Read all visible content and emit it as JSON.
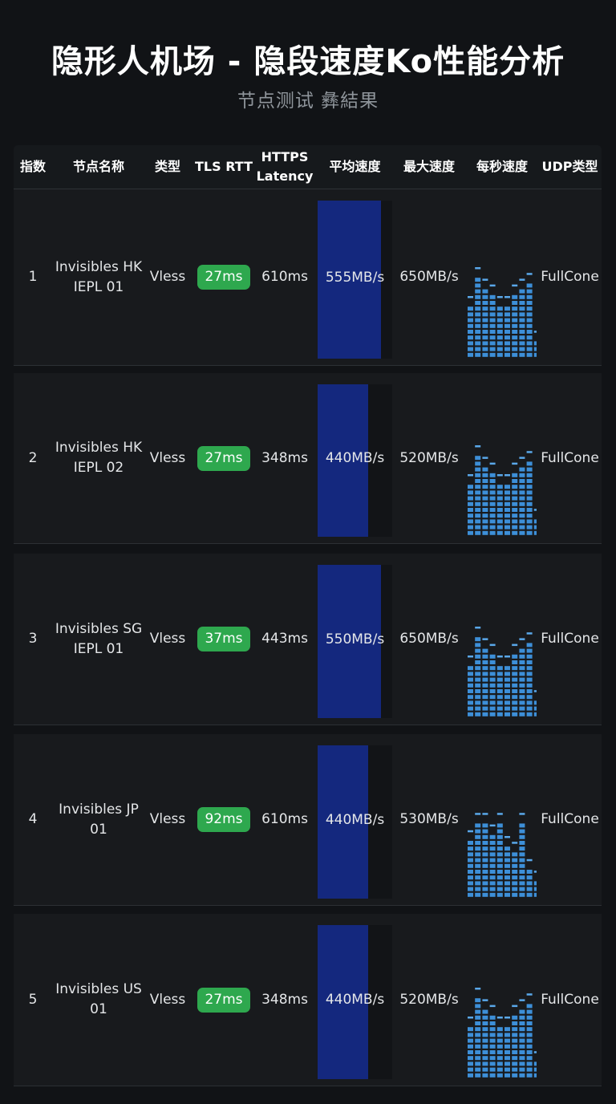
{
  "title": "隐形人机场 - 隐段速度Ko性能分析",
  "subtitle": "节点测试 彝結果",
  "columns": [
    "指数",
    "节点名称",
    "类型",
    "TLS RTT",
    "HTTPS Latency",
    "平均速度",
    "最大速度",
    "每秒速度",
    "UDP类型"
  ],
  "colors": {
    "accent_green": "#2ea84e",
    "bar_fill": "#14287e",
    "spark": "#3d8fd8"
  },
  "chart_data": {
    "type": "table",
    "max_speed_scale_mb": 650,
    "rows": [
      {
        "index": "1",
        "name": "Invisibles HK\nIEPL 01",
        "type": "Vless",
        "tls_rtt": "27ms",
        "https_latency": "610ms",
        "avg_speed": "555MB/s",
        "avg_speed_value": 555,
        "max_speed": "650MB/s",
        "per_second": [
          9,
          14,
          12,
          11,
          9,
          9,
          11,
          12,
          13,
          3
        ],
        "udp": "FullCone"
      },
      {
        "index": "2",
        "name": "Invisibles HK\nIEPL 02",
        "type": "Vless",
        "tls_rtt": "27ms",
        "https_latency": "348ms",
        "avg_speed": "440MB/s",
        "avg_speed_value": 440,
        "max_speed": "520MB/s",
        "per_second": [
          9,
          14,
          12,
          11,
          9,
          9,
          11,
          12,
          13,
          3
        ],
        "udp": "FullCone"
      },
      {
        "index": "3",
        "name": "Invisibles SG\nIEPL 01",
        "type": "Vless",
        "tls_rtt": "37ms",
        "https_latency": "443ms",
        "avg_speed": "550MB/s",
        "avg_speed_value": 550,
        "max_speed": "650MB/s",
        "per_second": [
          9,
          14,
          12,
          11,
          9,
          9,
          11,
          12,
          13,
          3
        ],
        "udp": "FullCone"
      },
      {
        "index": "4",
        "name": "Invisibles JP\n01",
        "type": "Vless",
        "tls_rtt": "92ms",
        "https_latency": "610ms",
        "avg_speed": "440MB/s",
        "avg_speed_value": 440,
        "max_speed": "530MB/s",
        "per_second": [
          10,
          13,
          13,
          11,
          13,
          9,
          8,
          13,
          5,
          3
        ],
        "udp": "FullCone"
      },
      {
        "index": "5",
        "name": "Invisibles US\n01",
        "type": "Vless",
        "tls_rtt": "27ms",
        "https_latency": "348ms",
        "avg_speed": "440MB/s",
        "avg_speed_value": 440,
        "max_speed": "520MB/s",
        "per_second": [
          9,
          14,
          12,
          11,
          9,
          9,
          11,
          12,
          13,
          3
        ],
        "udp": "FullCone"
      }
    ]
  }
}
